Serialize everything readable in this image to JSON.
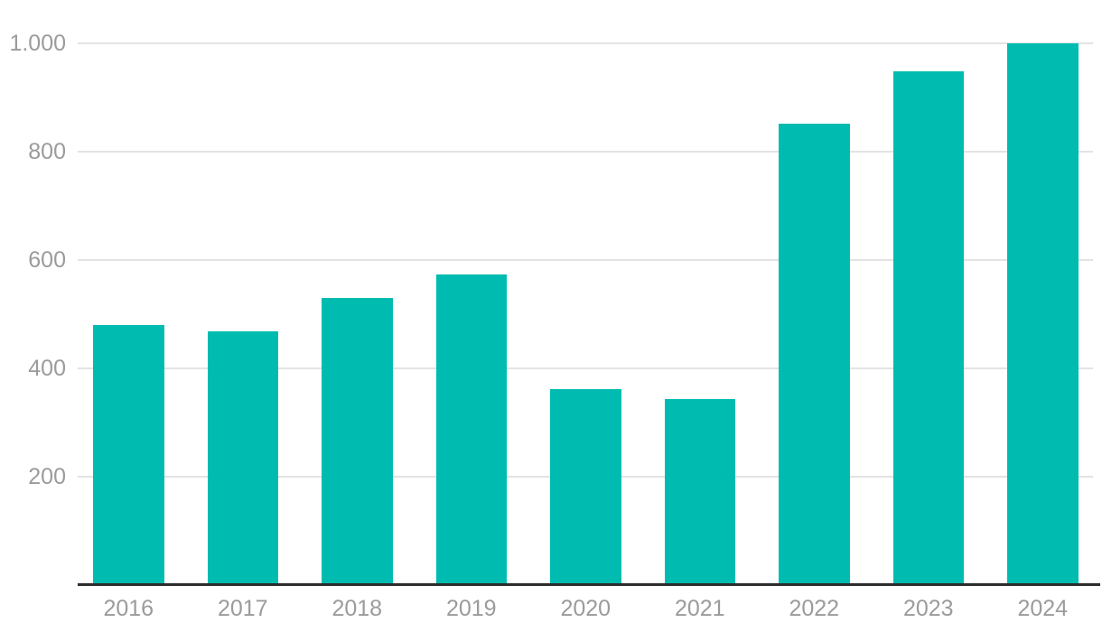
{
  "chart_data": {
    "type": "bar",
    "title": "",
    "categories": [
      "2016",
      "2017",
      "2018",
      "2019",
      "2020",
      "2021",
      "2022",
      "2023",
      "2024"
    ],
    "values": [
      480,
      468,
      530,
      573,
      361,
      343,
      851,
      948,
      1000
    ],
    "ylim": [
      0,
      1000
    ],
    "yticks": [
      {
        "value": 200,
        "label": "200"
      },
      {
        "value": 400,
        "label": "400"
      },
      {
        "value": 600,
        "label": "600"
      },
      {
        "value": 800,
        "label": "800"
      },
      {
        "value": 1000,
        "label": "1.000"
      }
    ],
    "grid": "horizontal-only",
    "legend": "none",
    "number_format": "dot-thousands-separator",
    "colors": {
      "bar": "#00bcb0",
      "gridline": "#e3e3e3",
      "axis_line": "#2d2d2d",
      "tick_label": "#9b9b9b",
      "background": "#ffffff"
    }
  }
}
